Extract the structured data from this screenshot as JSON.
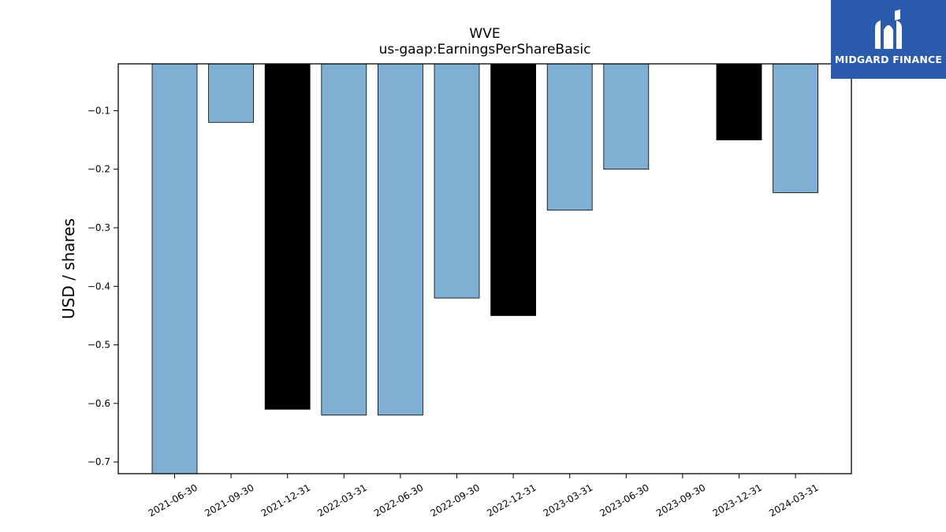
{
  "logo": {
    "text": "MIDGARD FINANCE",
    "background": "#2b5bad"
  },
  "chart_data": {
    "type": "bar",
    "title": "WVE",
    "subtitle": "us-gaap:EarningsPerShareBasic",
    "ylabel": "USD / shares",
    "xlabel": "",
    "ylim": [
      -0.72,
      -0.02
    ],
    "yticks": [
      -0.1,
      -0.2,
      -0.3,
      -0.4,
      -0.5,
      -0.6,
      -0.7
    ],
    "ytick_labels": [
      "−0.1",
      "−0.2",
      "−0.3",
      "−0.4",
      "−0.5",
      "−0.6",
      "−0.7"
    ],
    "categories": [
      "2021-06-30",
      "2021-09-30",
      "2021-12-31",
      "2022-03-31",
      "2022-06-30",
      "2022-09-30",
      "2022-12-31",
      "2023-03-31",
      "2023-06-30",
      "2023-09-30",
      "2023-12-31",
      "2024-03-31"
    ],
    "values": [
      -0.72,
      -0.12,
      -0.61,
      -0.62,
      -0.62,
      -0.42,
      -0.45,
      -0.27,
      -0.2,
      null,
      -0.15,
      -0.24
    ],
    "bar_colors": [
      "#7fb0d4",
      "#7fb0d4",
      "#000000",
      "#7fb0d4",
      "#7fb0d4",
      "#7fb0d4",
      "#000000",
      "#7fb0d4",
      "#7fb0d4",
      "#7fb0d4",
      "#000000",
      "#7fb0d4"
    ],
    "grid": false,
    "legend": "none"
  }
}
